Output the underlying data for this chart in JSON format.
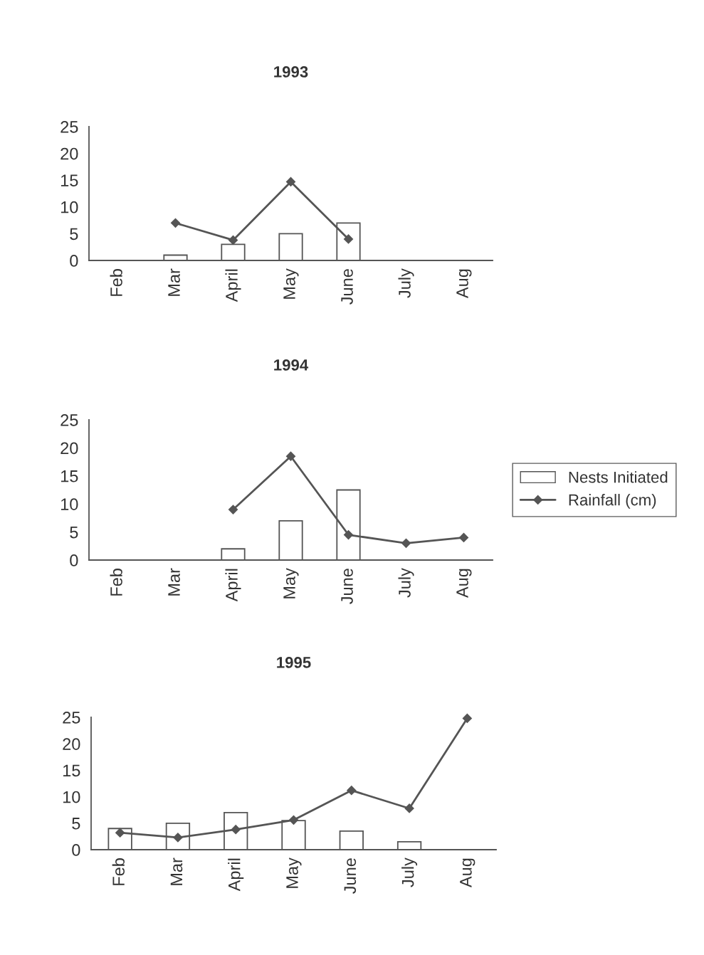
{
  "chart_data": [
    {
      "type": "bar",
      "title": "1993",
      "categories": [
        "Feb",
        "Mar",
        "April",
        "May",
        "June",
        "July",
        "Aug"
      ],
      "ylim": [
        0,
        25
      ],
      "yticks": [
        0,
        5,
        10,
        15,
        20,
        25
      ],
      "marker": "diamond",
      "series": [
        {
          "color": "#ffffff",
          "values": [
            null,
            1,
            3,
            5,
            7,
            null,
            null
          ]
        },
        {
          "type": "line",
          "color": "#555555",
          "values": [
            null,
            7,
            3.8,
            14.7,
            4,
            null,
            null
          ]
        }
      ]
    },
    {
      "type": "bar",
      "title": "1994",
      "categories": [
        "Feb",
        "Mar",
        "April",
        "May",
        "June",
        "July",
        "Aug"
      ],
      "ylim": [
        0,
        25
      ],
      "yticks": [
        0,
        5,
        10,
        15,
        20,
        25
      ],
      "legend": "right",
      "marker": "diamond",
      "series": [
        {
          "name": "Nests Initiated",
          "color": "#ffffff",
          "values": [
            null,
            null,
            2,
            7,
            12.5,
            null,
            null
          ]
        },
        {
          "name": "Rainfall (cm)",
          "type": "line",
          "color": "#555555",
          "values": [
            null,
            null,
            9,
            18.5,
            4.5,
            3,
            4
          ]
        }
      ]
    },
    {
      "type": "bar",
      "title": "1995",
      "categories": [
        "Feb",
        "Mar",
        "April",
        "May",
        "June",
        "July",
        "Aug"
      ],
      "ylim": [
        0,
        25
      ],
      "yticks": [
        0,
        5,
        10,
        15,
        20,
        25
      ],
      "marker": "diamond",
      "series": [
        {
          "color": "#ffffff",
          "values": [
            4,
            5,
            7,
            5.5,
            3.5,
            1.5,
            null
          ]
        },
        {
          "type": "line",
          "color": "#555555",
          "values": [
            3.2,
            2.3,
            3.8,
            5.6,
            11.2,
            7.8,
            24.8
          ]
        }
      ]
    }
  ]
}
